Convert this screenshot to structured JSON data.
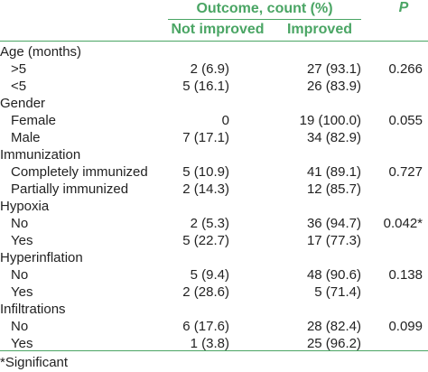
{
  "header": {
    "outcome": "Outcome, count (%)",
    "p": "P",
    "col1": "Not improved",
    "col2": "Improved"
  },
  "rows": [
    {
      "label": "Age (months)",
      "group": true
    },
    {
      "label": ">5",
      "v1": "2 (6.9)",
      "v2": "27 (93.1)",
      "p": "0.266"
    },
    {
      "label": "<5",
      "v1": "5 (16.1)",
      "v2": "26 (83.9)",
      "p": ""
    },
    {
      "label": "Gender",
      "group": true
    },
    {
      "label": "Female",
      "v1": "0",
      "v2": "19 (100.0)",
      "p": "0.055"
    },
    {
      "label": "Male",
      "v1": "7 (17.1)",
      "v2": "34 (82.9)",
      "p": ""
    },
    {
      "label": "Immunization",
      "group": true
    },
    {
      "label": "Completely immunized",
      "v1": "5 (10.9)",
      "v2": "41 (89.1)",
      "p": "0.727"
    },
    {
      "label": "Partially immunized",
      "v1": "2 (14.3)",
      "v2": "12 (85.7)",
      "p": ""
    },
    {
      "label": "Hypoxia",
      "group": true
    },
    {
      "label": "No",
      "v1": "2 (5.3)",
      "v2": "36 (94.7)",
      "p": "0.042*"
    },
    {
      "label": "Yes",
      "v1": "5 (22.7)",
      "v2": "17 (77.3)",
      "p": ""
    },
    {
      "label": "Hyperinflation",
      "group": true
    },
    {
      "label": "No",
      "v1": "5 (9.4)",
      "v2": "48 (90.6)",
      "p": "0.138"
    },
    {
      "label": "Yes",
      "v1": "2 (28.6)",
      "v2": "5 (71.4)",
      "p": ""
    },
    {
      "label": "Infiltrations",
      "group": true
    },
    {
      "label": "No",
      "v1": "6 (17.6)",
      "v2": "28 (82.4)",
      "p": "0.099"
    },
    {
      "label": "Yes",
      "v1": "1 (3.8)",
      "v2": "25 (96.2)",
      "p": ""
    }
  ],
  "footnote": "*Significant"
}
